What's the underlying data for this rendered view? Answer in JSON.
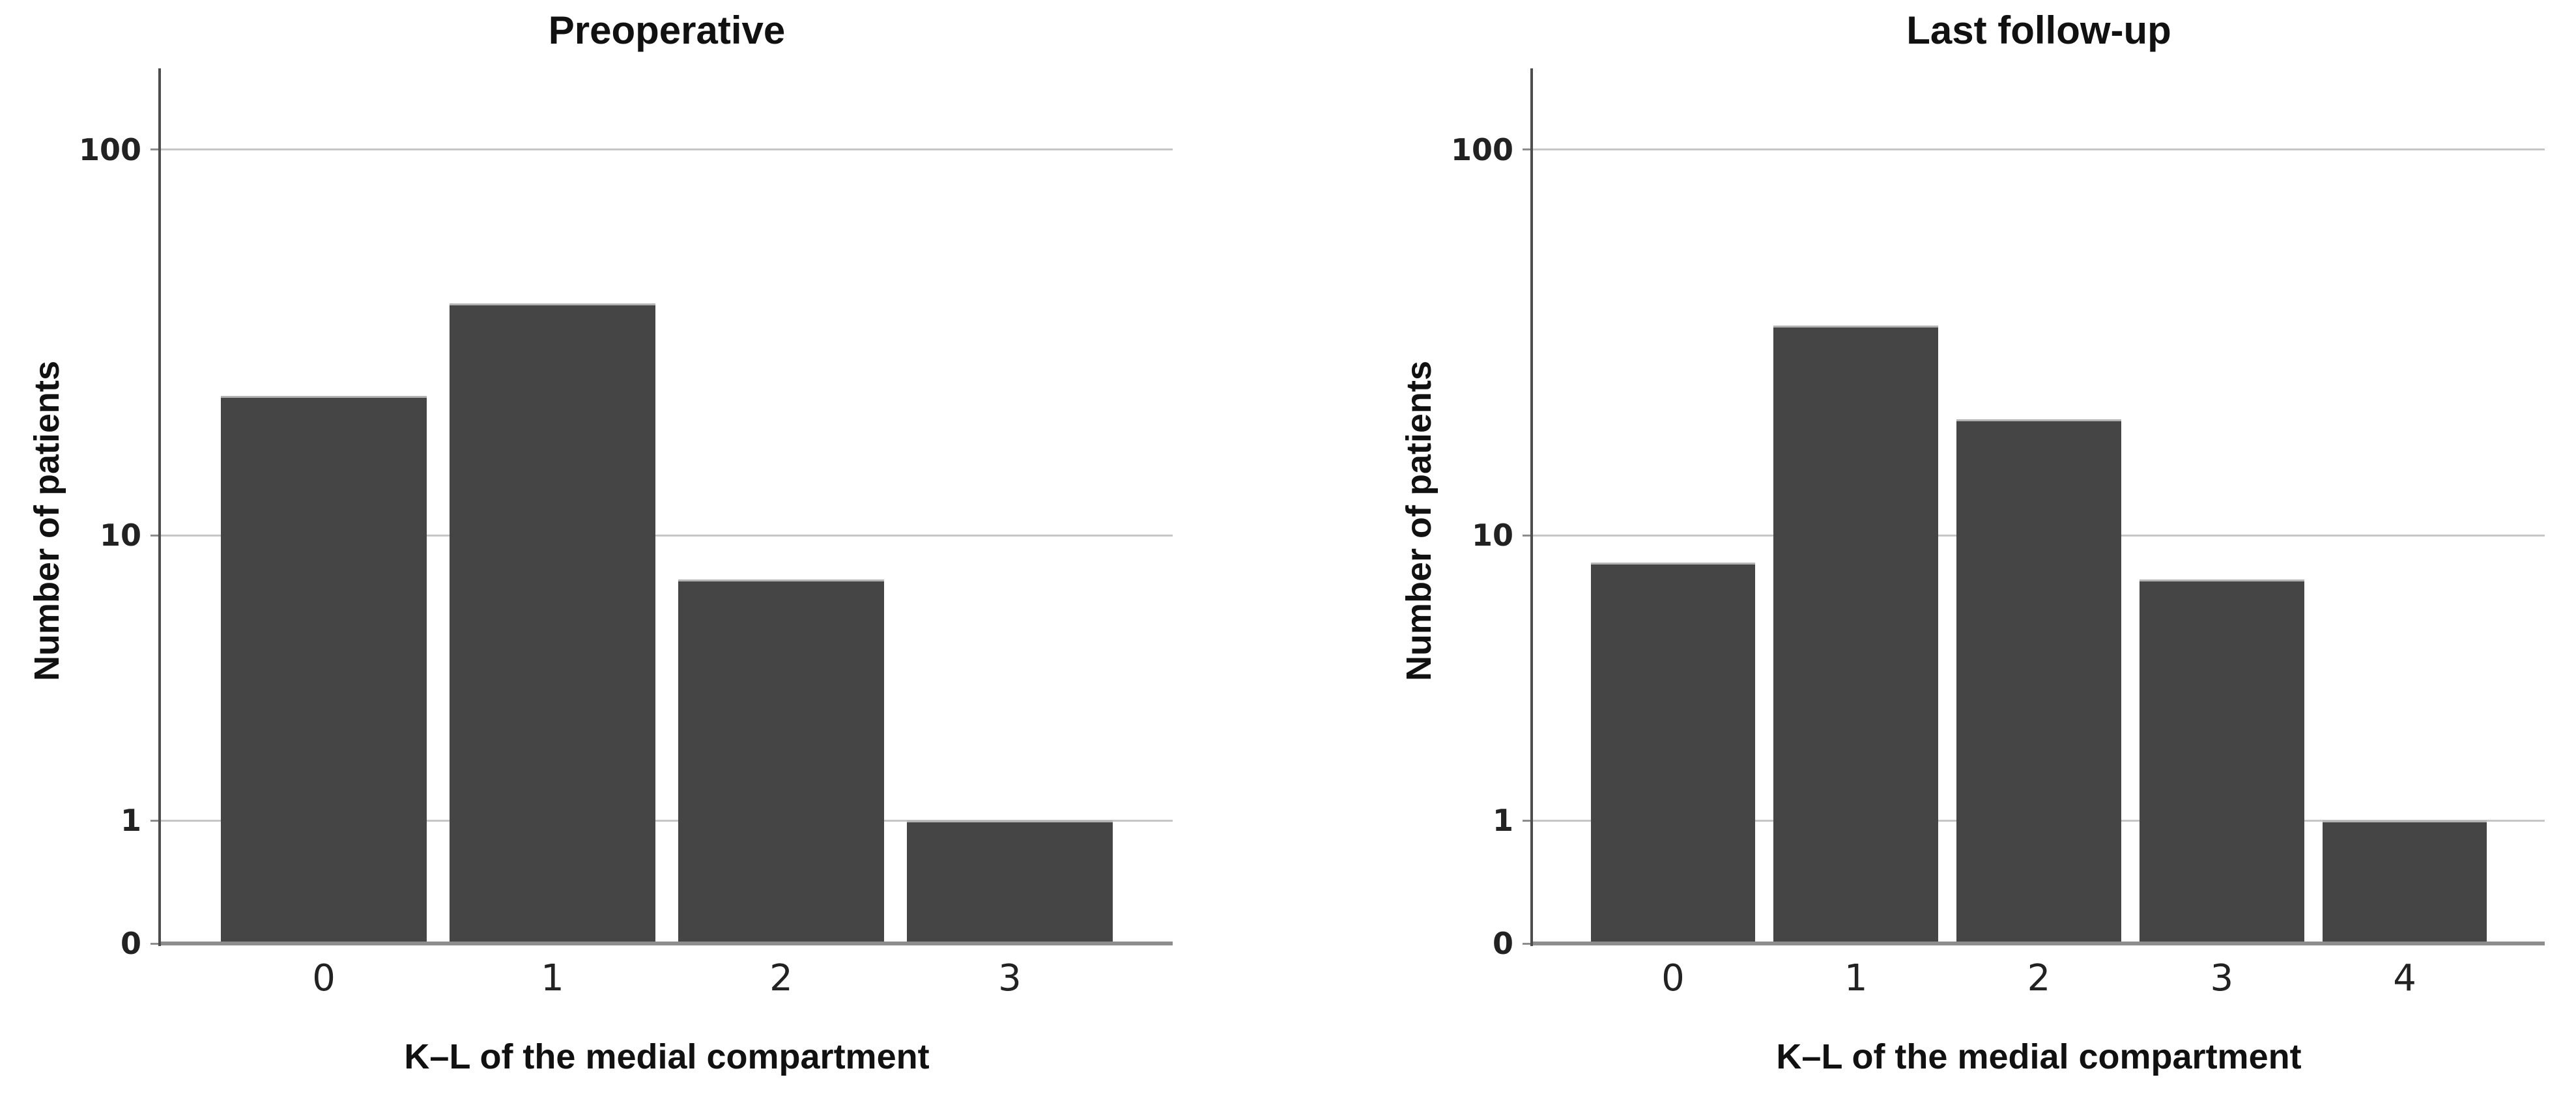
{
  "figure": {
    "background_color": "#ffffff",
    "description": "Two vertical bar charts on a log-like count axis comparing Kellgren-Lawrence grade distribution of the medial compartment"
  },
  "chart_data": [
    {
      "type": "bar",
      "title": "Preoperative",
      "categories": [
        "0",
        "1",
        "2",
        "3"
      ],
      "values": [
        23,
        40,
        7,
        1
      ],
      "xlabel": "K–L of the medial compartment",
      "ylabel": "Number of patients",
      "y_ticks": [
        {
          "label": "100",
          "value": 100,
          "grid": true
        },
        {
          "label": "10",
          "value": 10,
          "grid": true
        },
        {
          "label": "1",
          "value": 1,
          "grid": true
        },
        {
          "label": "0",
          "value": 0,
          "grid": false
        }
      ],
      "y_scale": "log",
      "ylim": [
        0,
        160
      ],
      "grid": true,
      "legend": "none",
      "bar_color": "#454545",
      "bar_edge_color": "#b3b3b3",
      "gridline_color": "#c6c6c6",
      "axis_line_color": "#4d4d4d",
      "baseline_color": "#8d8d8d"
    },
    {
      "type": "bar",
      "title": "Last follow-up",
      "categories": [
        "0",
        "1",
        "2",
        "3",
        "4"
      ],
      "values": [
        8,
        35,
        20,
        7,
        1
      ],
      "xlabel": "K–L of the medial compartment",
      "ylabel": "Number of patients",
      "y_ticks": [
        {
          "label": "100",
          "value": 100,
          "grid": true
        },
        {
          "label": "10",
          "value": 10,
          "grid": true
        },
        {
          "label": "1",
          "value": 1,
          "grid": true
        },
        {
          "label": "0",
          "value": 0,
          "grid": false
        }
      ],
      "y_scale": "log",
      "ylim": [
        0,
        160
      ],
      "grid": true,
      "legend": "none",
      "bar_color": "#454545",
      "bar_edge_color": "#b3b3b3",
      "gridline_color": "#c6c6c6",
      "axis_line_color": "#4d4d4d",
      "baseline_color": "#8d8d8d"
    }
  ]
}
